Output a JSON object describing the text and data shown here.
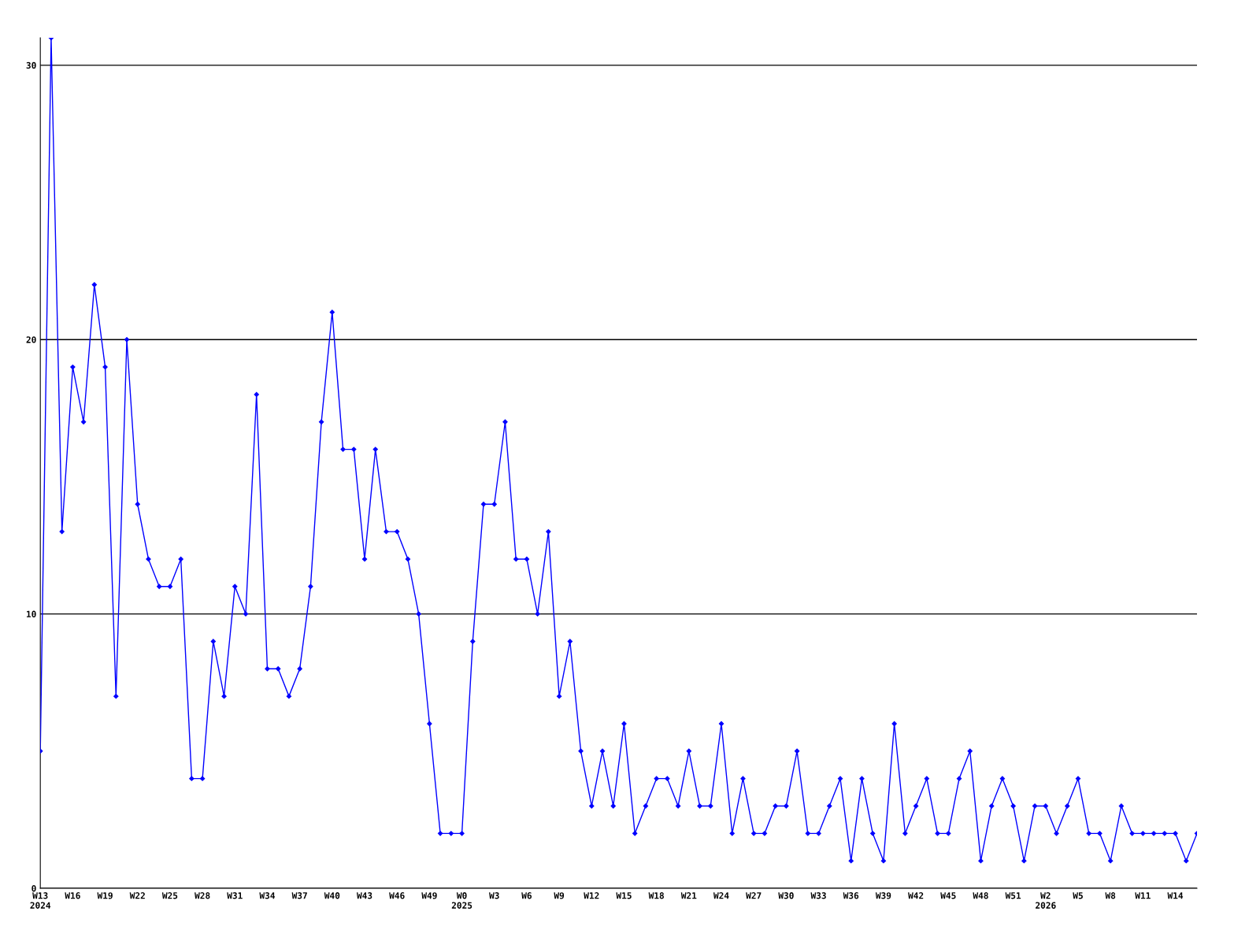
{
  "chart_data": {
    "type": "line",
    "categories": [
      "W13\n2024",
      null,
      null,
      "W16",
      null,
      null,
      "W19",
      null,
      null,
      "W22",
      null,
      null,
      "W25",
      null,
      null,
      "W28",
      null,
      null,
      "W31",
      null,
      null,
      "W34",
      null,
      null,
      "W37",
      null,
      null,
      "W40",
      null,
      null,
      "W43",
      null,
      null,
      "W46",
      null,
      null,
      "W49",
      null,
      null,
      "W0\n2025",
      null,
      null,
      "W3",
      null,
      null,
      "W6",
      null,
      null,
      "W9",
      null,
      null,
      "W12",
      null,
      null,
      "W15",
      null,
      null,
      "W18",
      null,
      null,
      "W21",
      null,
      null,
      "W24",
      null,
      null,
      "W27",
      null,
      null,
      "W30",
      null,
      null,
      "W33",
      null,
      null,
      "W36",
      null,
      null,
      "W39",
      null,
      null,
      "W42",
      null,
      null,
      "W45",
      null,
      null,
      "W48",
      null,
      null,
      "W51",
      null,
      null,
      "W2\n2026",
      null,
      null,
      "W5",
      null,
      null,
      "W8",
      null,
      null,
      "W11",
      null,
      null,
      "W14",
      null,
      null
    ],
    "series": [
      {
        "color": "#0000ff",
        "values": [
          5,
          31,
          13,
          19,
          17,
          22,
          19,
          7,
          20,
          14,
          12,
          11,
          11,
          12,
          4,
          4,
          9,
          7,
          11,
          10,
          18,
          8,
          8,
          7,
          8,
          11,
          17,
          21,
          16,
          16,
          12,
          16,
          13,
          13,
          12,
          10,
          6,
          2,
          2,
          2,
          9,
          14,
          14,
          17,
          12,
          12,
          10,
          13,
          7,
          9,
          5,
          3,
          5,
          3,
          6,
          2,
          3,
          4,
          4,
          3,
          5,
          3,
          3,
          6,
          2,
          4,
          2,
          2,
          3,
          3,
          5,
          2,
          2,
          3,
          4,
          1,
          4,
          2,
          1,
          6,
          2,
          3,
          4,
          2,
          2,
          4,
          5,
          1,
          3,
          4,
          3,
          1,
          3,
          3,
          2,
          3,
          4,
          2,
          2,
          1,
          3,
          2,
          2,
          2,
          2,
          2,
          1,
          2
        ]
      }
    ],
    "ylim": [
      0,
      31
    ],
    "yticks": [
      0,
      10,
      20,
      30
    ],
    "grid": "y",
    "marker": "diamond",
    "line_style": "solid",
    "legend": false
  }
}
